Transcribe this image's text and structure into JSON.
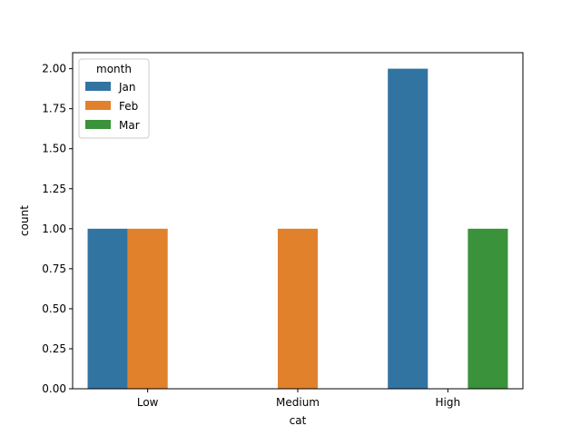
{
  "chart_data": {
    "type": "bar",
    "categories": [
      "Low",
      "Medium",
      "High"
    ],
    "series": [
      {
        "name": "Jan",
        "values": [
          1,
          0,
          2
        ],
        "color": "#3274a1"
      },
      {
        "name": "Feb",
        "values": [
          1,
          1,
          0
        ],
        "color": "#e1812c"
      },
      {
        "name": "Mar",
        "values": [
          0,
          0,
          1
        ],
        "color": "#3a923a"
      }
    ],
    "xlabel": "cat",
    "ylabel": "count",
    "ylim": [
      0,
      2.1
    ],
    "yticks": [
      "0.00",
      "0.25",
      "0.50",
      "0.75",
      "1.00",
      "1.25",
      "1.50",
      "1.75",
      "2.00"
    ],
    "legend": {
      "title": "month",
      "placement": "top-left"
    },
    "grid": false
  }
}
